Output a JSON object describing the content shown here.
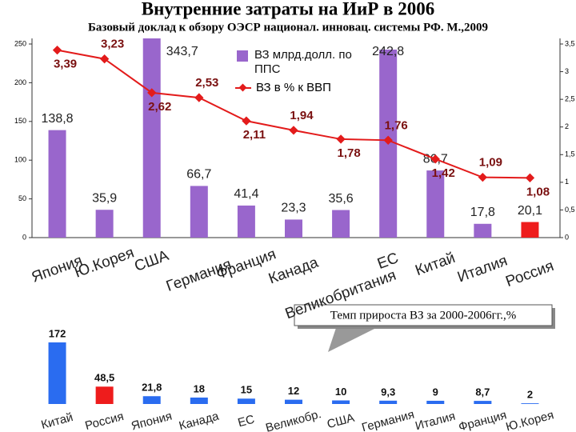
{
  "title": "Внутренние затраты на ИиР в 2006",
  "subtitle": "Базовый доклад к обзору ОЭСР национал. инновац. системы РФ. М.,2009",
  "chart_data": [
    {
      "type": "combo",
      "categories": [
        "Япония",
        "Ю.Корея",
        "США",
        "Германия",
        "Франция",
        "Канада",
        "Великобритания",
        "ЕС",
        "Китай",
        "Италия",
        "Россия"
      ],
      "series": [
        {
          "name": "ВЗ млрд.долл. по ППС",
          "type": "bar",
          "color": "#9966cc",
          "colors": [
            "#9966cc",
            "#9966cc",
            "#9966cc",
            "#9966cc",
            "#9966cc",
            "#9966cc",
            "#9966cc",
            "#9966cc",
            "#9966cc",
            "#9966cc",
            "#ee1c1c"
          ],
          "values": [
            138.8,
            35.9,
            343.7,
            66.7,
            41.4,
            23.3,
            35.6,
            242.8,
            86.7,
            17.8,
            20.1
          ],
          "value_labels": [
            "138,8",
            "35,9",
            "343,7",
            "66,7",
            "41,4",
            "23,3",
            "35,6",
            "242,8",
            "86,7",
            "17,8",
            "20,1"
          ]
        },
        {
          "name": "ВЗ в % к ВВП",
          "type": "line",
          "axis": "y2",
          "color": "#e31b1b",
          "values": [
            3.39,
            3.23,
            2.62,
            2.53,
            2.11,
            1.94,
            1.78,
            1.76,
            1.42,
            1.09,
            1.08
          ],
          "value_labels": [
            "3,39",
            "3,23",
            "2,62",
            "2,53",
            "2,11",
            "1,94",
            "1,78",
            "1,76",
            "1,42",
            "1,09",
            "1,08"
          ]
        }
      ],
      "ylim": [
        0,
        250
      ],
      "yticks": [
        0,
        50,
        100,
        150,
        200,
        250
      ],
      "y2lim": [
        0,
        3.5
      ],
      "y2ticks": [
        0,
        {
          "value": 0.5,
          "label": "0,5"
        },
        1,
        {
          "value": 1.5,
          "label": "1,5"
        },
        2,
        {
          "value": 2.5,
          "label": "2,5"
        },
        3,
        {
          "value": 3.5,
          "label": "3,5"
        }
      ]
    },
    {
      "type": "bar",
      "title": "Темп прироста ВЗ за 2000-2006гг.,%",
      "categories": [
        "Китай",
        "Россия",
        "Япония",
        "Канада",
        "ЕС",
        "Великобр.",
        "США",
        "Германия",
        "Италия",
        "Франция",
        "Ю.Корея"
      ],
      "values": [
        172,
        48.5,
        21.8,
        18,
        15,
        12,
        10,
        9.3,
        9,
        8.7,
        2
      ],
      "value_labels": [
        "172",
        "48,5",
        "21,8",
        "18",
        "15",
        "12",
        "10",
        "9,3",
        "9",
        "8,7",
        "2"
      ],
      "colors": [
        "#2a6cf0",
        "#ee1c1c",
        "#2a6cf0",
        "#2a6cf0",
        "#2a6cf0",
        "#2a6cf0",
        "#2a6cf0",
        "#2a6cf0",
        "#2a6cf0",
        "#2a6cf0",
        "#2a6cf0"
      ]
    }
  ]
}
